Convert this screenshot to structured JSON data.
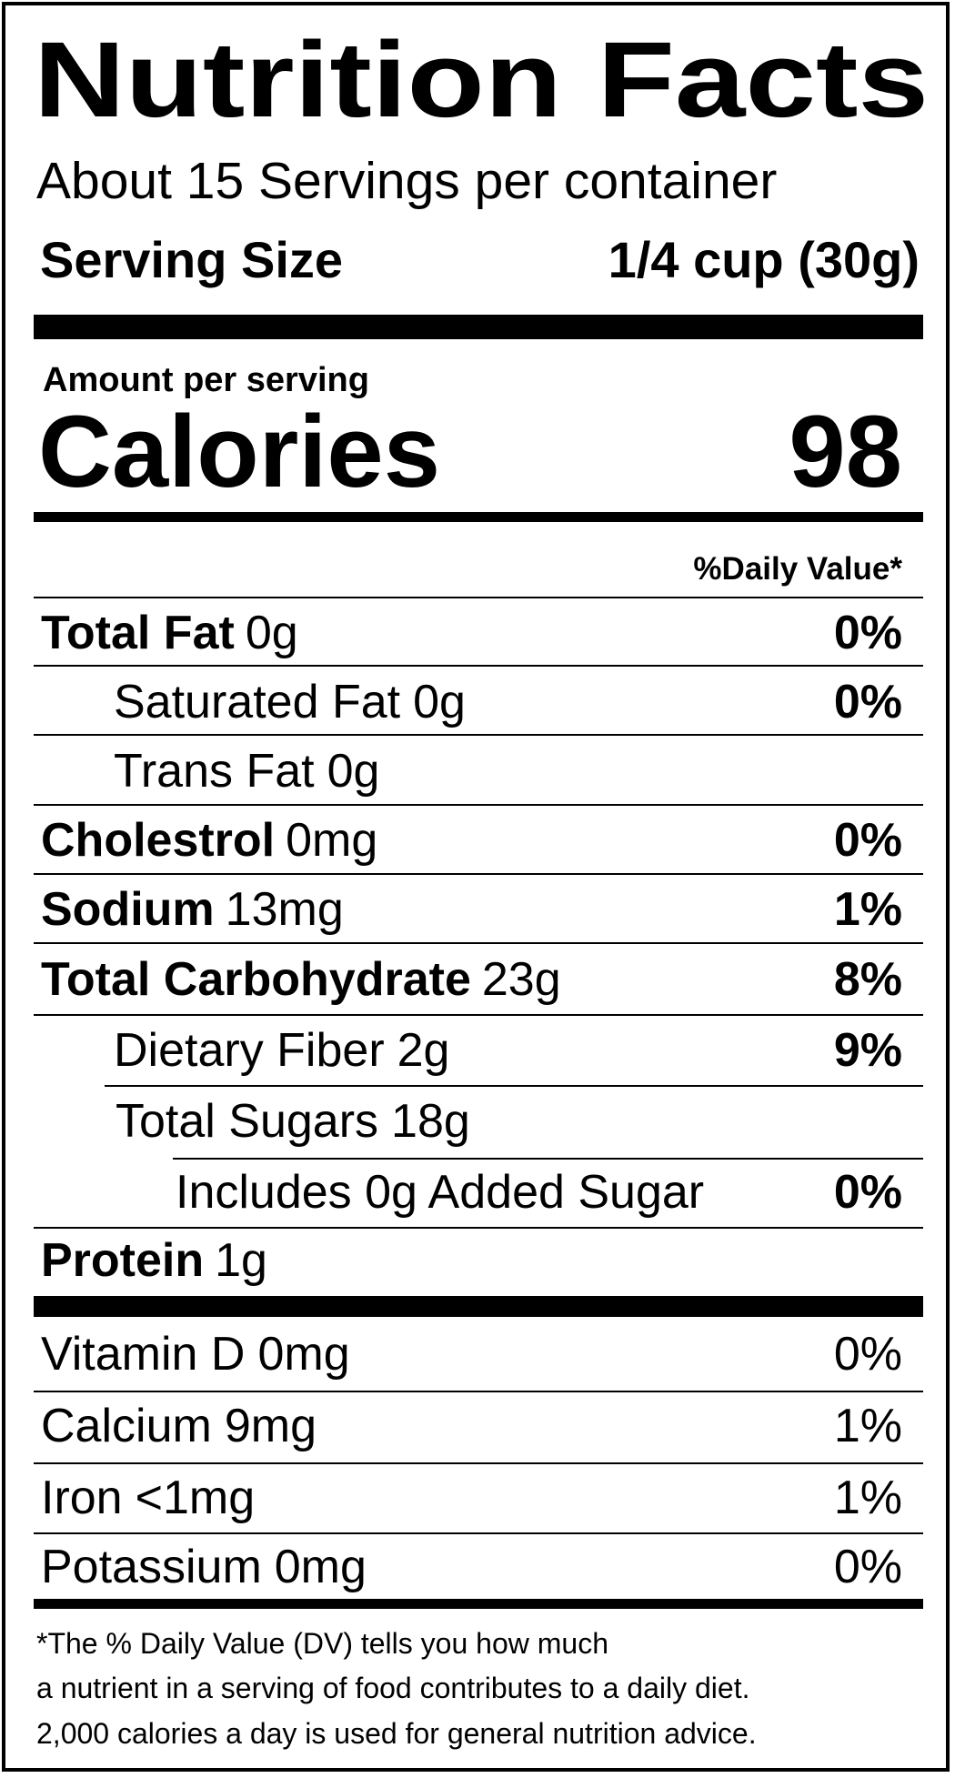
{
  "title": "Nutrition Facts",
  "servings": "About 15 Servings per container",
  "serving_size": {
    "label": "Serving Size",
    "value": "1/4 cup (30g)"
  },
  "amount_per_serving": "Amount per serving",
  "calories": {
    "label": "Calories",
    "value": "98"
  },
  "daily_value_header": "%Daily Value*",
  "nutrients": [
    {
      "name": "Total Fat",
      "amount": "0g",
      "dv": "0%",
      "sub": [
        {
          "name": "Saturated Fat",
          "amount": "0g",
          "dv": "0%"
        },
        {
          "name": "Trans Fat",
          "amount": "0g"
        }
      ]
    },
    {
      "name": "Cholestrol",
      "amount": "0mg",
      "dv": "0%"
    },
    {
      "name": "Sodium",
      "amount": "13mg",
      "dv": "1%"
    },
    {
      "name": "Total Carbohydrate",
      "amount": "23g",
      "dv": "8%",
      "sub": [
        {
          "name": "Dietary Fiber",
          "amount": "2g",
          "dv": "9%"
        },
        {
          "name": "Total Sugars",
          "amount": "18g",
          "sub": [
            {
              "text": "Includes 0g Added Sugar",
              "dv": "0%"
            }
          ]
        }
      ]
    },
    {
      "name": "Protein",
      "amount": "1g"
    }
  ],
  "vitamins": [
    {
      "name": "Vitamin D",
      "amount": "0mg",
      "dv": "0%"
    },
    {
      "name": "Calcium",
      "amount": "9mg",
      "dv": "1%"
    },
    {
      "name": "Iron",
      "amount": "<1mg",
      "dv": "1%"
    },
    {
      "name": "Potassium",
      "amount": "0mg",
      "dv": "0%"
    }
  ],
  "footnote": [
    "*The % Daily Value (DV) tells you how much",
    "a nutrient in a serving of food contributes to a daily diet.",
    "2,000 calories a day is used for general nutrition advice."
  ]
}
